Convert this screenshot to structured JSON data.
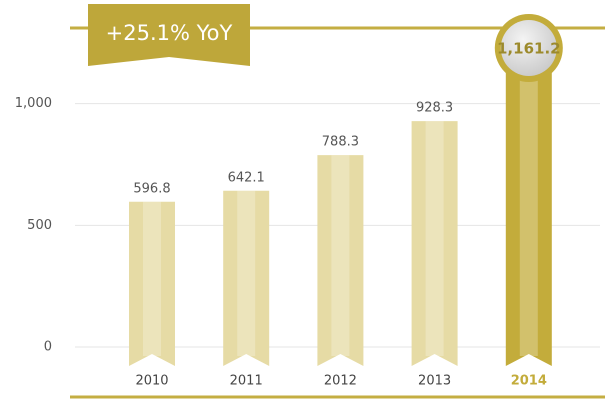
{
  "chart_data": {
    "type": "bar",
    "annotation": "+25.1% YoY",
    "categories": [
      "2010",
      "2011",
      "2012",
      "2013",
      "2014"
    ],
    "values": [
      596.8,
      642.1,
      788.3,
      928.3,
      1161.2
    ],
    "value_labels": [
      "596.8",
      "642.1",
      "788.3",
      "928.3",
      "1,161.2"
    ],
    "colors": [
      "#e6dba5",
      "#e6dba5",
      "#e6dba5",
      "#e6dba5",
      "#c3ac3b"
    ],
    "ylim": [
      0,
      1200
    ],
    "yticks": [
      0,
      500,
      {
        "value": 1000,
        "label": "1,000"
      }
    ],
    "grid": true
  }
}
